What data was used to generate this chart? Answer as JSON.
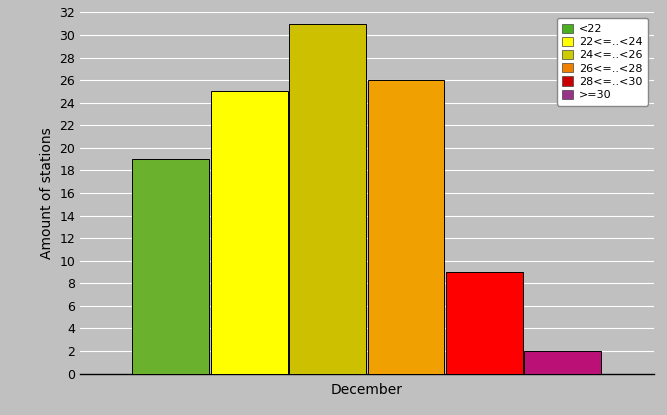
{
  "xlabel": "December",
  "ylabel": "Amount of stations",
  "background_color": "#c0c0c0",
  "plot_bg_color": "#c0c0c0",
  "categories": [
    "<22",
    "22<=..<24",
    "24<=..<26",
    "26<=..<28",
    "28<=..<30",
    ">=30"
  ],
  "values": [
    19,
    25,
    31,
    26,
    9,
    2
  ],
  "bar_colors": [
    "#6ab22e",
    "#ffff00",
    "#ccc000",
    "#f0a000",
    "#ff0000",
    "#bb1177"
  ],
  "legend_colors": [
    "#4ab020",
    "#ffff00",
    "#cccc00",
    "#f08000",
    "#cc0000",
    "#993388"
  ],
  "ylim": [
    0,
    32
  ],
  "yticks": [
    0,
    2,
    4,
    6,
    8,
    10,
    12,
    14,
    16,
    18,
    20,
    22,
    24,
    26,
    28,
    30,
    32
  ],
  "bar_width": 0.13,
  "bar_edge_color": "#000000",
  "grid_color": "#aaaaaa",
  "ylabel_fontsize": 10,
  "xlabel_fontsize": 10,
  "tick_fontsize": 9,
  "legend_fontsize": 8
}
